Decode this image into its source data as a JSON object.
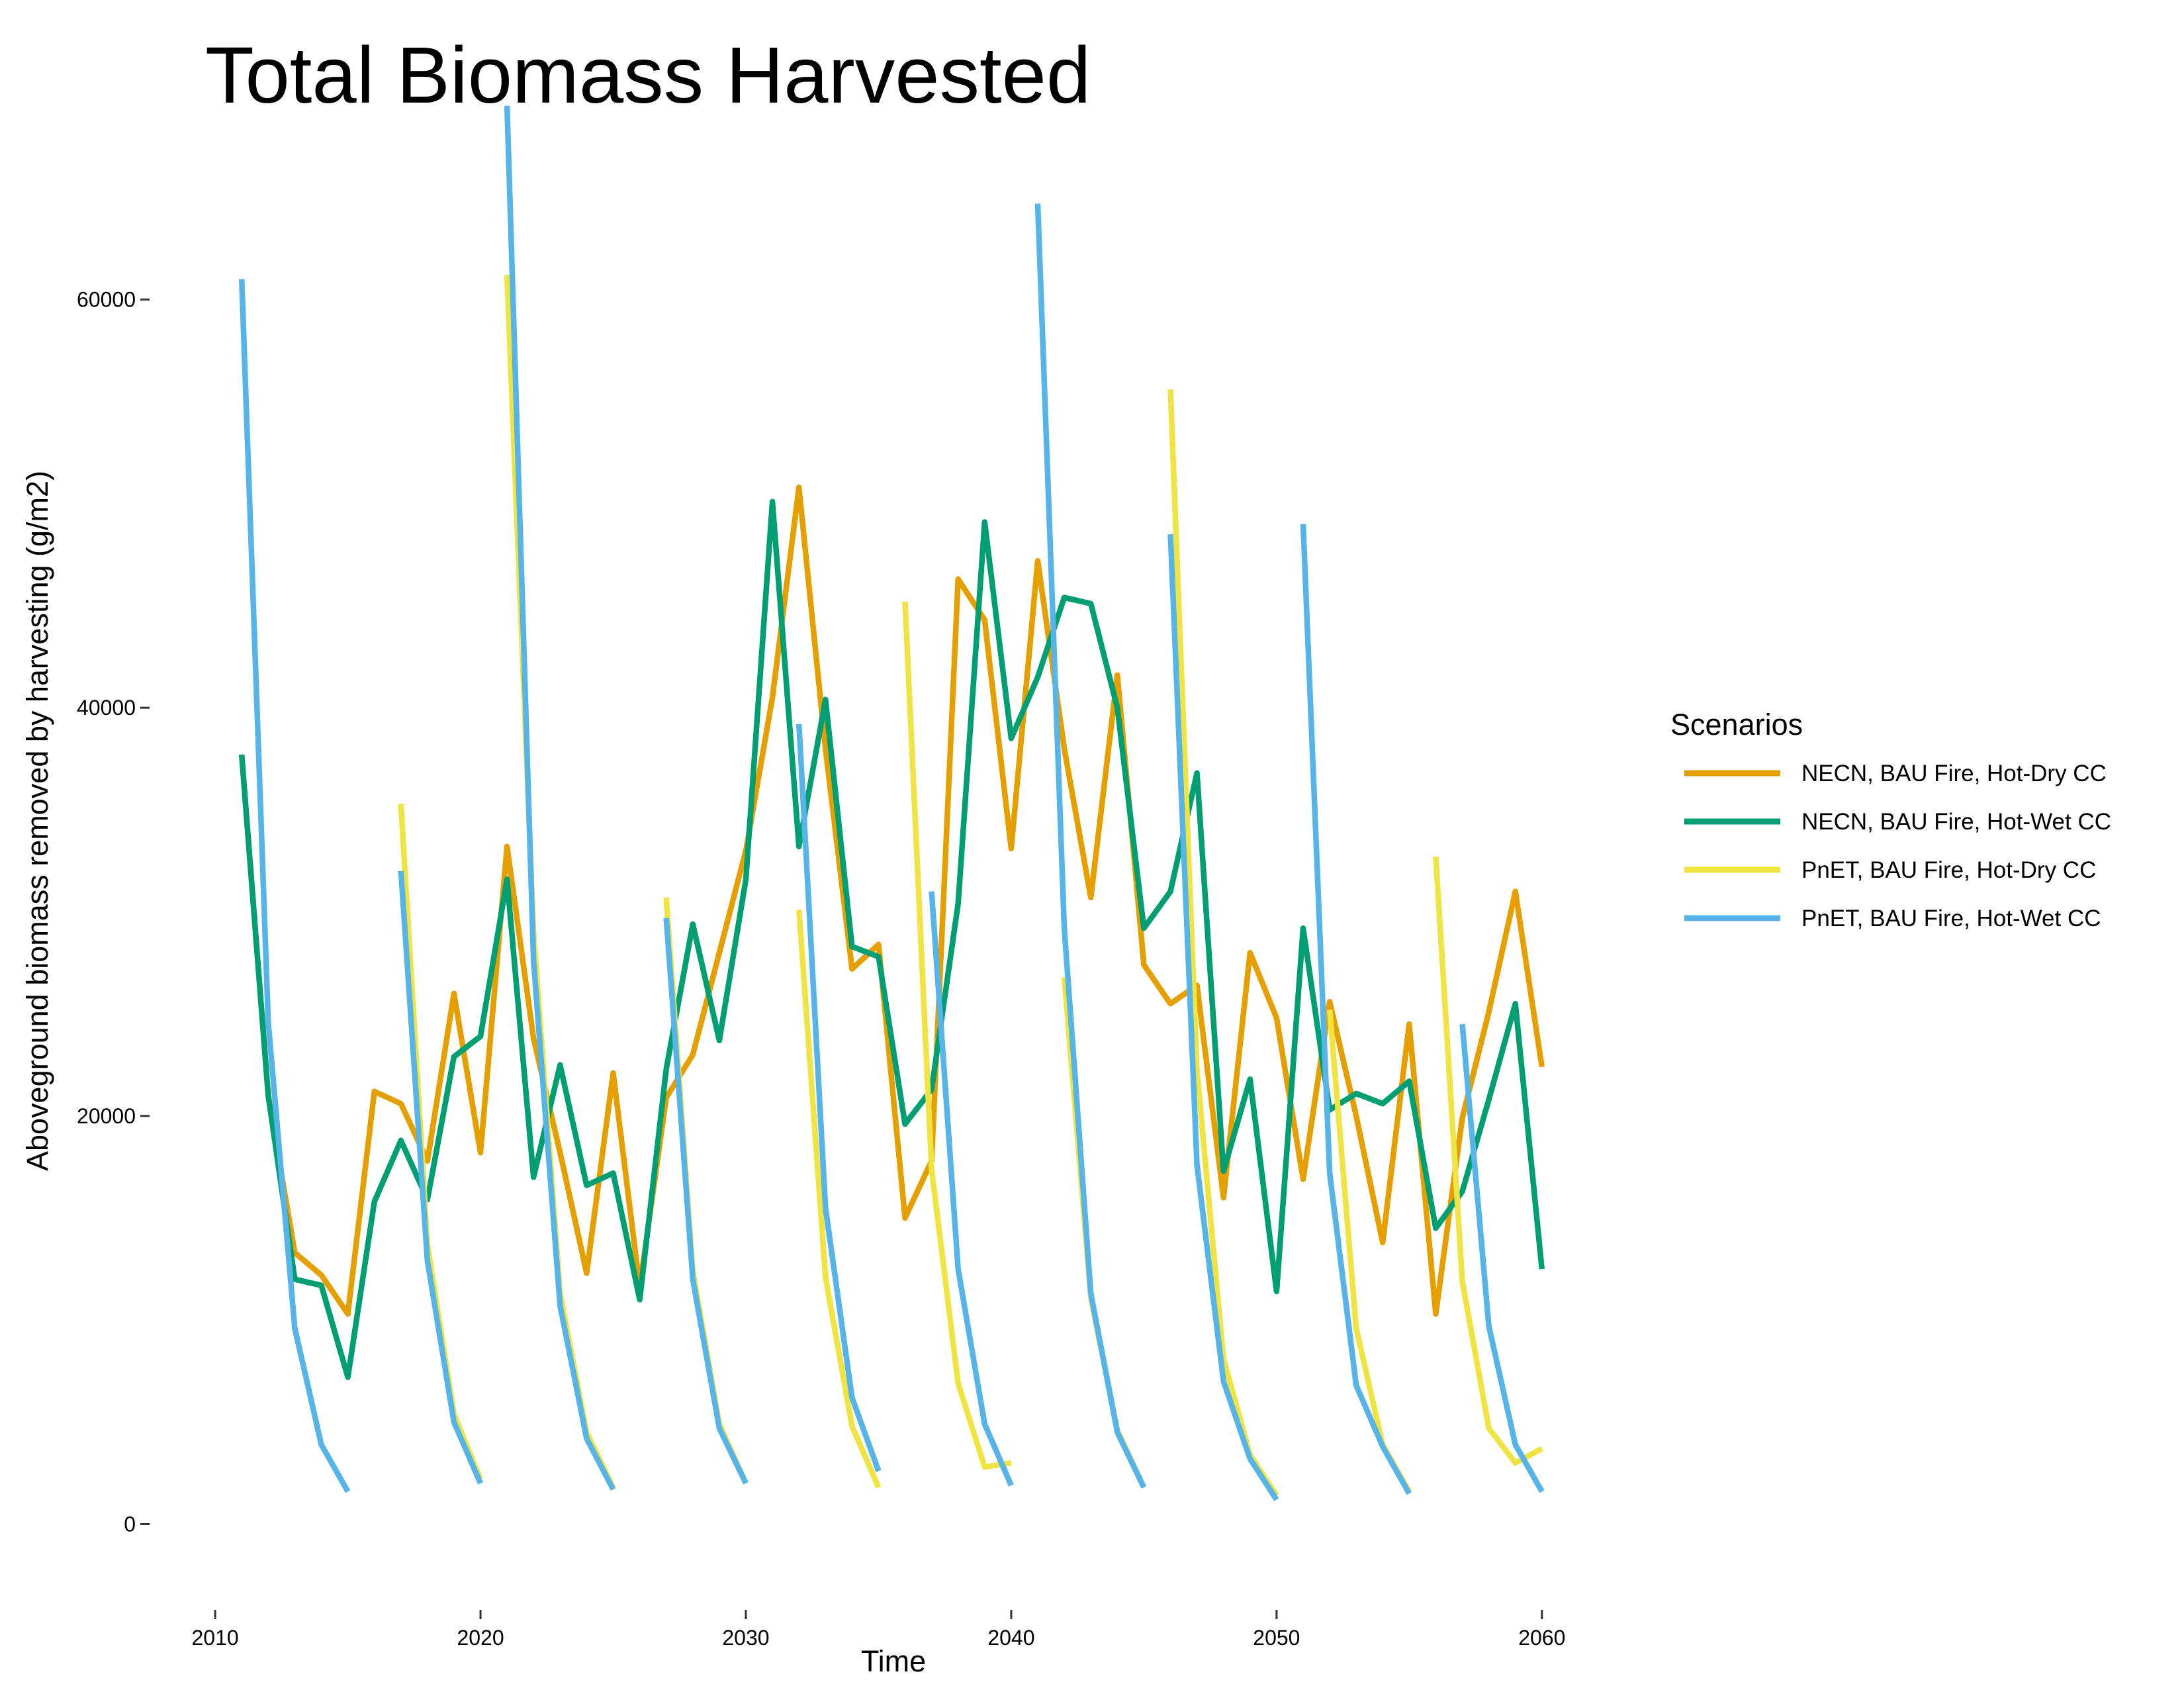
{
  "chart_data": {
    "type": "line",
    "title": "Total Biomass Harvested",
    "xlabel": "Time",
    "ylabel": "Aboveground biomass removed by harvesting (g/m2)",
    "xlim": [
      2009.0,
      2062.0
    ],
    "ylim": [
      -3000,
      69000
    ],
    "x_ticks": [
      2010,
      2020,
      2030,
      2040,
      2050,
      2060
    ],
    "y_ticks": [
      0,
      20000,
      40000,
      60000
    ],
    "grid": false,
    "legend": {
      "title": "Scenarios",
      "position": "right"
    },
    "series": [
      {
        "name": "NECN, BAU Fire, Hot-Dry CC",
        "color": "#E69F00",
        "points": [
          [
            2011,
            37700
          ],
          [
            2012,
            21000
          ],
          [
            2013,
            13300
          ],
          [
            2014,
            12200
          ],
          [
            2015,
            10300
          ],
          [
            2016,
            21200
          ],
          [
            2017,
            20600
          ],
          [
            2018,
            17800
          ],
          [
            2019,
            26000
          ],
          [
            2020,
            18200
          ],
          [
            2021,
            33200
          ],
          [
            2022,
            23800
          ],
          [
            2023,
            18200
          ],
          [
            2024,
            12300
          ],
          [
            2025,
            22100
          ],
          [
            2026,
            11600
          ],
          [
            2027,
            20900
          ],
          [
            2028,
            23000
          ],
          [
            2029,
            28000
          ],
          [
            2030,
            33000
          ],
          [
            2031,
            40500
          ],
          [
            2032,
            50800
          ],
          [
            2033,
            38000
          ],
          [
            2034,
            27200
          ],
          [
            2035,
            28400
          ],
          [
            2036,
            15000
          ],
          [
            2037,
            17800
          ],
          [
            2038,
            46300
          ],
          [
            2039,
            44300
          ],
          [
            2040,
            33100
          ],
          [
            2041,
            47200
          ],
          [
            2042,
            38000
          ],
          [
            2043,
            30700
          ],
          [
            2044,
            41600
          ],
          [
            2045,
            27400
          ],
          [
            2046,
            25500
          ],
          [
            2047,
            26400
          ],
          [
            2048,
            16000
          ],
          [
            2049,
            28000
          ],
          [
            2050,
            24800
          ],
          [
            2051,
            16900
          ],
          [
            2052,
            25600
          ],
          [
            2053,
            20000
          ],
          [
            2054,
            13800
          ],
          [
            2055,
            24500
          ],
          [
            2056,
            10300
          ],
          [
            2057,
            19900
          ],
          [
            2058,
            25100
          ],
          [
            2059,
            31000
          ],
          [
            2060,
            22400
          ]
        ]
      },
      {
        "name": "NECN, BAU Fire, Hot-Wet CC",
        "color": "#009E73",
        "points": [
          [
            2011,
            37700
          ],
          [
            2012,
            21000
          ],
          [
            2013,
            12000
          ],
          [
            2014,
            11700
          ],
          [
            2015,
            7200
          ],
          [
            2016,
            15800
          ],
          [
            2017,
            18800
          ],
          [
            2018,
            15900
          ],
          [
            2019,
            22900
          ],
          [
            2020,
            23900
          ],
          [
            2021,
            31600
          ],
          [
            2022,
            17000
          ],
          [
            2023,
            22500
          ],
          [
            2024,
            16600
          ],
          [
            2025,
            17200
          ],
          [
            2026,
            11000
          ],
          [
            2027,
            22300
          ],
          [
            2028,
            29400
          ],
          [
            2029,
            23700
          ],
          [
            2030,
            31600
          ],
          [
            2031,
            50100
          ],
          [
            2032,
            33200
          ],
          [
            2033,
            40400
          ],
          [
            2034,
            28300
          ],
          [
            2035,
            27800
          ],
          [
            2036,
            19600
          ],
          [
            2037,
            21300
          ],
          [
            2038,
            30400
          ],
          [
            2039,
            49100
          ],
          [
            2040,
            38500
          ],
          [
            2041,
            41500
          ],
          [
            2042,
            45400
          ],
          [
            2043,
            45100
          ],
          [
            2044,
            40000
          ],
          [
            2045,
            29200
          ],
          [
            2046,
            31000
          ],
          [
            2047,
            36800
          ],
          [
            2048,
            17300
          ],
          [
            2049,
            21800
          ],
          [
            2050,
            11400
          ],
          [
            2051,
            29200
          ],
          [
            2052,
            20300
          ],
          [
            2053,
            21100
          ],
          [
            2054,
            20600
          ],
          [
            2055,
            21700
          ],
          [
            2056,
            14500
          ],
          [
            2057,
            16300
          ],
          [
            2058,
            20800
          ],
          [
            2059,
            25500
          ],
          [
            2060,
            12500
          ]
        ]
      },
      {
        "name": "PnET, BAU Fire, Hot-Dry CC",
        "color": "#F0E442",
        "segments": [
          [
            [
              2017,
              35300
            ],
            [
              2018,
              13700
            ],
            [
              2019,
              5400
            ],
            [
              2020,
              2200
            ]
          ],
          [
            [
              2021,
              61200
            ],
            [
              2022,
              29000
            ],
            [
              2023,
              11300
            ],
            [
              2024,
              4500
            ],
            [
              2025,
              1800
            ]
          ],
          [
            [
              2027,
              30700
            ],
            [
              2028,
              12400
            ],
            [
              2029,
              4900
            ],
            [
              2030,
              2000
            ]
          ],
          [
            [
              2032,
              30100
            ],
            [
              2033,
              12100
            ],
            [
              2034,
              4800
            ],
            [
              2035,
              1800
            ]
          ],
          [
            [
              2036,
              45200
            ],
            [
              2037,
              17400
            ],
            [
              2038,
              6900
            ],
            [
              2039,
              2800
            ],
            [
              2040,
              3000
            ]
          ],
          [
            [
              2042,
              26800
            ],
            [
              2043,
              11100
            ],
            [
              2044,
              4600
            ],
            [
              2045,
              1800
            ]
          ],
          [
            [
              2046,
              55600
            ],
            [
              2047,
              22200
            ],
            [
              2048,
              8100
            ],
            [
              2049,
              3400
            ],
            [
              2050,
              1400
            ]
          ],
          [
            [
              2052,
              25200
            ],
            [
              2053,
              9600
            ],
            [
              2054,
              3900
            ],
            [
              2055,
              1600
            ]
          ],
          [
            [
              2056,
              32700
            ],
            [
              2057,
              11900
            ],
            [
              2058,
              4700
            ],
            [
              2059,
              3000
            ],
            [
              2060,
              3700
            ]
          ]
        ]
      },
      {
        "name": "PnET, BAU Fire, Hot-Wet CC",
        "color": "#56B4E9",
        "segments": [
          [
            [
              2011,
              61000
            ],
            [
              2012,
              24600
            ],
            [
              2013,
              9600
            ],
            [
              2014,
              3900
            ],
            [
              2015,
              1600
            ]
          ],
          [
            [
              2017,
              32000
            ],
            [
              2018,
              12900
            ],
            [
              2019,
              5000
            ],
            [
              2020,
              2000
            ]
          ],
          [
            [
              2021,
              69500
            ],
            [
              2022,
              27600
            ],
            [
              2023,
              10700
            ],
            [
              2024,
              4200
            ],
            [
              2025,
              1700
            ]
          ],
          [
            [
              2027,
              29700
            ],
            [
              2028,
              12000
            ],
            [
              2029,
              4700
            ],
            [
              2030,
              2000
            ]
          ],
          [
            [
              2032,
              39200
            ],
            [
              2033,
              15500
            ],
            [
              2034,
              6200
            ],
            [
              2035,
              2600
            ]
          ],
          [
            [
              2037,
              31000
            ],
            [
              2038,
              12500
            ],
            [
              2039,
              4900
            ],
            [
              2040,
              1900
            ]
          ],
          [
            [
              2041,
              64700
            ],
            [
              2042,
              29200
            ],
            [
              2043,
              11300
            ],
            [
              2044,
              4500
            ],
            [
              2045,
              1800
            ]
          ],
          [
            [
              2046,
              48500
            ],
            [
              2047,
              17600
            ],
            [
              2048,
              7000
            ],
            [
              2049,
              3200
            ],
            [
              2050,
              1200
            ]
          ],
          [
            [
              2051,
              49000
            ],
            [
              2052,
              17200
            ],
            [
              2053,
              6800
            ],
            [
              2054,
              3800
            ],
            [
              2055,
              1500
            ]
          ],
          [
            [
              2057,
              24500
            ],
            [
              2058,
              9700
            ],
            [
              2059,
              3900
            ],
            [
              2060,
              1600
            ]
          ]
        ]
      }
    ]
  }
}
